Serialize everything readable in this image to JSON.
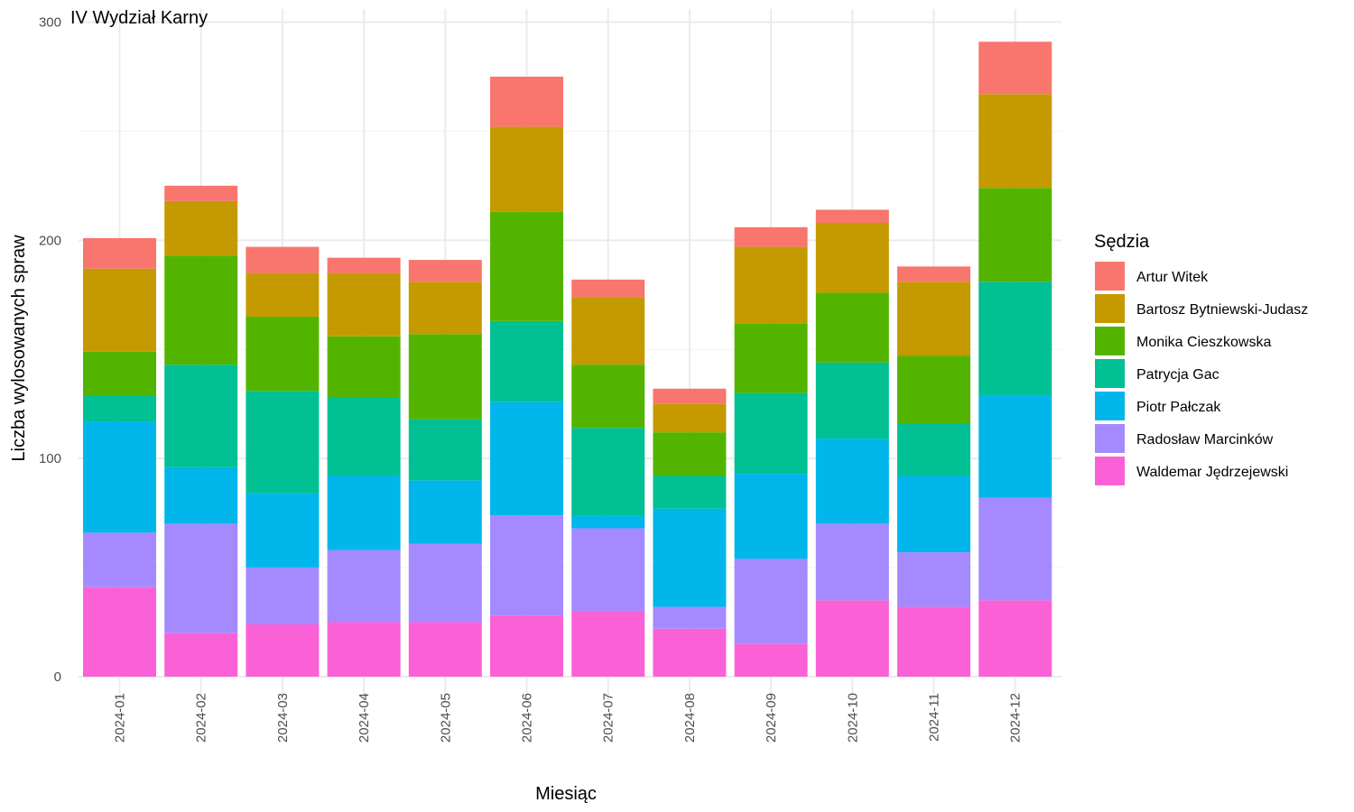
{
  "chart_data": {
    "type": "bar",
    "stacked": true,
    "title": "IV Wydział Karny",
    "xlabel": "Miesiąc",
    "ylabel": "Liczba wylosowanych spraw",
    "ylim": [
      0,
      300
    ],
    "yticks": [
      0,
      100,
      200,
      300
    ],
    "grid": true,
    "legend_title": "Sędzia",
    "legend_position": "right",
    "categories": [
      "2024-01",
      "2024-02",
      "2024-03",
      "2024-04",
      "2024-05",
      "2024-06",
      "2024-07",
      "2024-08",
      "2024-09",
      "2024-10",
      "2024-11",
      "2024-12"
    ],
    "series": [
      {
        "name": "Waldemar Jędrzejewski",
        "color": "#FB61D7",
        "values": [
          41,
          20,
          24,
          25,
          25,
          28,
          30,
          22,
          15,
          35,
          32,
          35
        ]
      },
      {
        "name": "Radosław Marcinków",
        "color": "#A58AFF",
        "values": [
          25,
          50,
          26,
          33,
          36,
          46,
          38,
          10,
          39,
          35,
          25,
          47
        ]
      },
      {
        "name": "Piotr Pałczak",
        "color": "#00B6EB",
        "values": [
          51,
          26,
          34,
          34,
          29,
          52,
          6,
          45,
          39,
          39,
          35,
          47
        ]
      },
      {
        "name": "Patrycja Gac",
        "color": "#00C094",
        "values": [
          12,
          47,
          47,
          36,
          28,
          37,
          40,
          15,
          37,
          35,
          24,
          52
        ]
      },
      {
        "name": "Monika Cieszkowska",
        "color": "#53B400",
        "values": [
          20,
          50,
          34,
          28,
          39,
          50,
          29,
          20,
          32,
          32,
          31,
          43
        ]
      },
      {
        "name": "Bartosz Bytniewski-Judasz",
        "color": "#C49A00",
        "values": [
          38,
          25,
          20,
          29,
          24,
          39,
          31,
          13,
          35,
          32,
          34,
          43
        ]
      },
      {
        "name": "Artur Witek",
        "color": "#F8766D",
        "values": [
          14,
          7,
          12,
          7,
          10,
          23,
          8,
          7,
          9,
          6,
          7,
          24
        ]
      }
    ],
    "legend_order": [
      "Artur Witek",
      "Bartosz Bytniewski-Judasz",
      "Monika Cieszkowska",
      "Patrycja Gac",
      "Piotr Pałczak",
      "Radosław Marcinków",
      "Waldemar Jędrzejewski"
    ]
  }
}
